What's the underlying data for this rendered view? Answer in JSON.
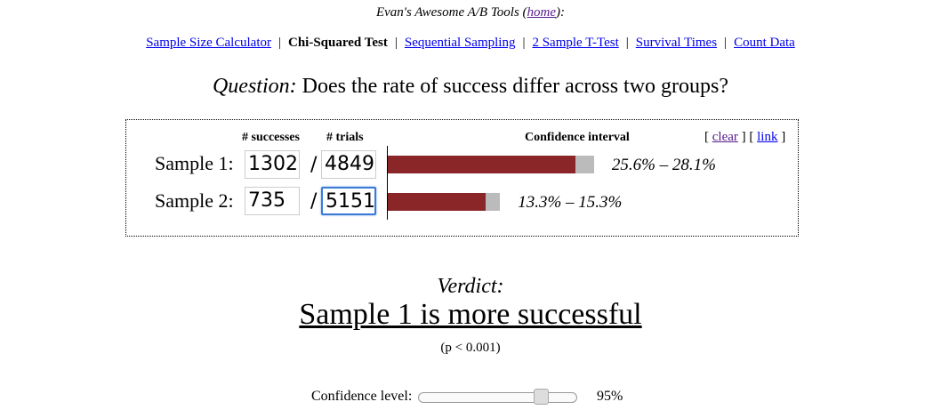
{
  "header": {
    "prefix": "Evan's Awesome A/B Tools (",
    "home_link": "home",
    "suffix": "):"
  },
  "nav": {
    "items": [
      {
        "label": "Sample Size Calculator",
        "current": false
      },
      {
        "label": "Chi-Squared Test",
        "current": true
      },
      {
        "label": "Sequential Sampling",
        "current": false
      },
      {
        "label": "2 Sample T-Test",
        "current": false
      },
      {
        "label": "Survival Times",
        "current": false
      },
      {
        "label": "Count Data",
        "current": false
      }
    ],
    "separator": "|"
  },
  "question": {
    "label": "Question:",
    "text": " Does the rate of success differ across two groups?"
  },
  "panel": {
    "successes_header": "# successes",
    "trials_header": "# trials",
    "ci_header": "Confidence interval",
    "clear_open": "[ ",
    "clear_label": "clear",
    "mid": " ] [ ",
    "link_label": "link",
    "close": " ]",
    "slash": "/"
  },
  "samples": [
    {
      "label": "Sample 1:",
      "successes": "1302",
      "trials": "4849",
      "ci_text": "25.6% – 28.1%",
      "ci_low_pct": 25.6,
      "ci_high_pct": 28.1
    },
    {
      "label": "Sample 2:",
      "successes": "735",
      "trials": "5151",
      "ci_text": "13.3% – 15.3%",
      "ci_low_pct": 13.3,
      "ci_high_pct": 15.3
    }
  ],
  "verdict": {
    "label": "Verdict:",
    "text": "Sample 1 is more successful",
    "pvalue": "(p < 0.001)"
  },
  "confidence": {
    "label": "Confidence level:",
    "value_text": "95%",
    "slider_fraction": 0.8
  },
  "colors": {
    "bar_fill": "#8b2628",
    "ci_fill": "#bbbbbb",
    "link": "#0000ee",
    "focus": "#3b7bd6"
  }
}
